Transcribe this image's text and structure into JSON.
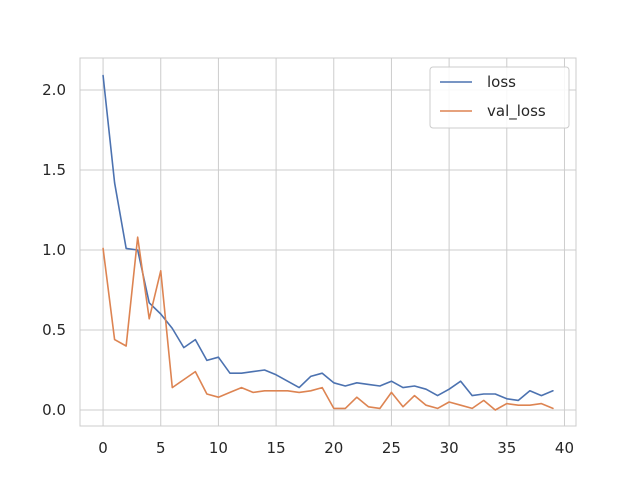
{
  "chart_data": {
    "type": "line",
    "title": "",
    "xlabel": "",
    "ylabel": "",
    "xlim": [
      -2,
      41
    ],
    "ylim": [
      -0.1,
      2.2
    ],
    "grid": true,
    "legend_position": "top-right",
    "x_ticks": [
      0,
      5,
      10,
      15,
      20,
      25,
      30,
      35,
      40
    ],
    "x_tick_labels": [
      "0",
      "5",
      "10",
      "15",
      "20",
      "25",
      "30",
      "35",
      "40"
    ],
    "y_ticks": [
      0.0,
      0.5,
      1.0,
      1.5,
      2.0
    ],
    "y_tick_labels": [
      "0.0",
      "0.5",
      "1.0",
      "1.5",
      "2.0"
    ],
    "x": [
      0,
      1,
      2,
      3,
      4,
      5,
      6,
      7,
      8,
      9,
      10,
      11,
      12,
      13,
      14,
      15,
      16,
      17,
      18,
      19,
      20,
      21,
      22,
      23,
      24,
      25,
      26,
      27,
      28,
      29,
      30,
      31,
      32,
      33,
      34,
      35,
      36,
      37,
      38,
      39
    ],
    "series": [
      {
        "name": "loss",
        "color": "#4c72b0",
        "values": [
          2.09,
          1.42,
          1.01,
          1.0,
          0.67,
          0.6,
          0.51,
          0.39,
          0.44,
          0.31,
          0.33,
          0.23,
          0.23,
          0.24,
          0.25,
          0.22,
          0.18,
          0.14,
          0.21,
          0.23,
          0.17,
          0.15,
          0.17,
          0.16,
          0.15,
          0.18,
          0.14,
          0.15,
          0.13,
          0.09,
          0.13,
          0.18,
          0.09,
          0.1,
          0.1,
          0.07,
          0.06,
          0.12,
          0.09,
          0.12
        ]
      },
      {
        "name": "val_loss",
        "color": "#dd8452",
        "values": [
          1.01,
          0.44,
          0.4,
          1.08,
          0.57,
          0.87,
          0.14,
          0.19,
          0.24,
          0.1,
          0.08,
          0.11,
          0.14,
          0.11,
          0.12,
          0.12,
          0.12,
          0.11,
          0.12,
          0.14,
          0.01,
          0.01,
          0.08,
          0.02,
          0.01,
          0.11,
          0.02,
          0.09,
          0.03,
          0.01,
          0.05,
          0.03,
          0.01,
          0.06,
          0.0,
          0.04,
          0.03,
          0.03,
          0.04,
          0.01
        ]
      }
    ]
  }
}
